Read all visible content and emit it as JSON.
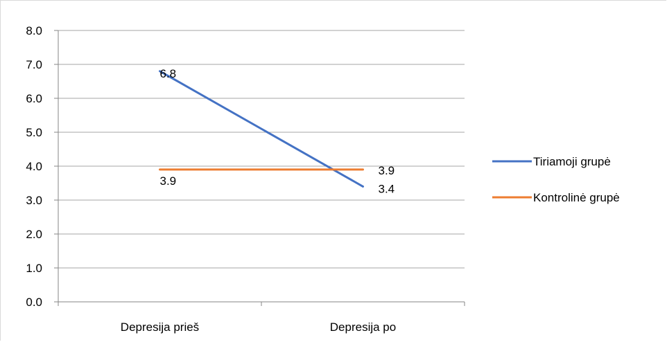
{
  "chart_data": {
    "type": "line",
    "categories": [
      "Depresija prieš",
      "Depresija po"
    ],
    "series": [
      {
        "name": "Tiriamoji grupė",
        "values": [
          6.8,
          3.4
        ],
        "color": "#4472c4",
        "data_labels": [
          "6.8",
          "3.4"
        ]
      },
      {
        "name": "Kontrolinė grupė",
        "values": [
          3.9,
          3.9
        ],
        "color": "#ed7d31",
        "data_labels": [
          "3.9",
          "3.9"
        ]
      }
    ],
    "ylim": [
      0,
      8
    ],
    "yticks": [
      "0.0",
      "1.0",
      "2.0",
      "3.0",
      "4.0",
      "5.0",
      "6.0",
      "7.0",
      "8.0"
    ],
    "grid": true,
    "legend_position": "right",
    "gridline_color": "#a6a6a6",
    "axis_color": "#868686"
  }
}
